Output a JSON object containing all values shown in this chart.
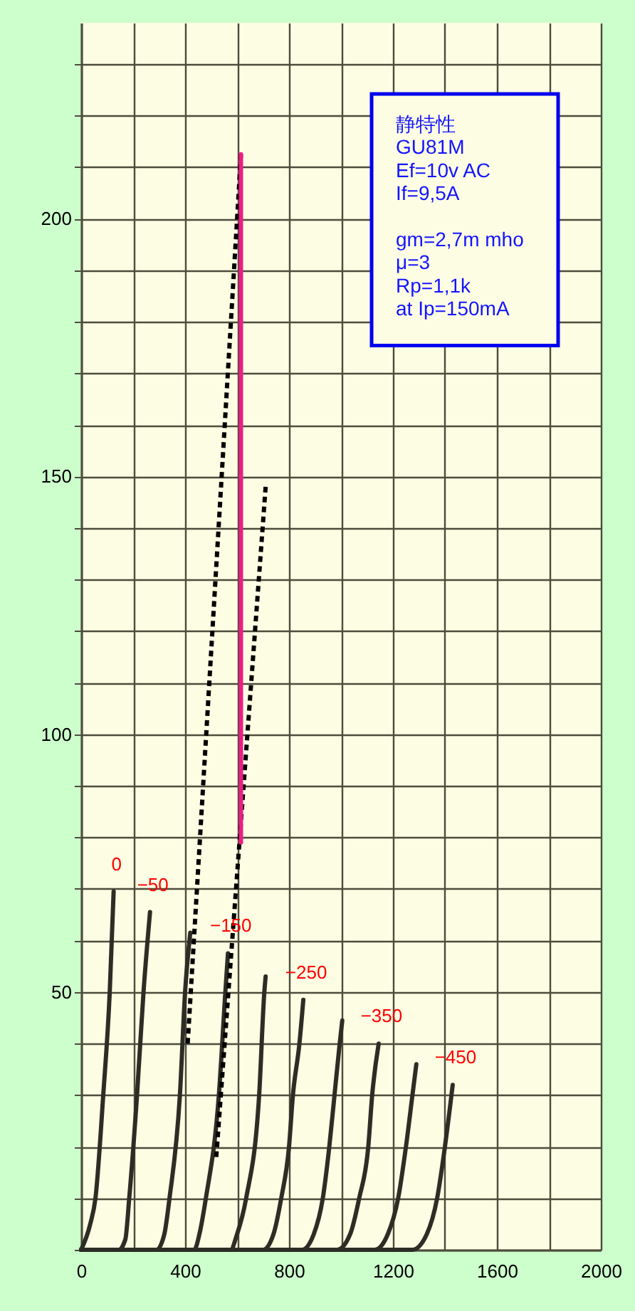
{
  "chart_data": {
    "type": "line",
    "annotations": [
      "静特性\nGU81M\nEf=10v AC\nIf=9,5A",
      "gm=2,7m mho\nμ=3\nRp=1,1k\nat Ip=150mA"
    ],
    "xlim": [
      0,
      2000
    ],
    "ylim": [
      0,
      238
    ],
    "xticks": [
      0,
      {
        "value": 200,
        "label": null
      },
      400,
      {
        "value": 600,
        "label": null
      },
      800,
      {
        "value": 1000,
        "label": null
      },
      1200,
      {
        "value": 1400,
        "label": null
      },
      1600,
      {
        "value": 1800,
        "label": null
      },
      2000
    ],
    "yticks": [
      {
        "value": 0,
        "label": null
      },
      {
        "value": 10,
        "label": null
      },
      {
        "value": 20,
        "label": null
      },
      {
        "value": 30,
        "label": null
      },
      {
        "value": 40,
        "label": null
      },
      50,
      {
        "value": 60,
        "label": null
      },
      {
        "value": 70,
        "label": null
      },
      {
        "value": 80,
        "label": null
      },
      {
        "value": 90,
        "label": null
      },
      100,
      {
        "value": 110,
        "label": null
      },
      {
        "value": 120,
        "label": null
      },
      {
        "value": 130,
        "label": null
      },
      {
        "value": 140,
        "label": null
      },
      150,
      {
        "value": 160,
        "label": null
      },
      {
        "value": 170,
        "label": null
      },
      {
        "value": 180,
        "label": null
      },
      {
        "value": 190,
        "label": null
      },
      200,
      {
        "value": 210,
        "label": null
      },
      {
        "value": 220,
        "label": null
      },
      {
        "value": 230,
        "label": null
      }
    ],
    "grid": true,
    "line_style": "solid",
    "series": [
      {
        "name": "0",
        "color": "#2d2d25",
        "x": [
          0,
          35,
          55,
          85,
          110,
          125
        ],
        "values": [
          0,
          5,
          10,
          30,
          50,
          69.5
        ]
      },
      {
        "name": "−50",
        "color": "#2d2d25",
        "x": [
          0,
          145,
          170,
          185,
          215,
          240,
          265
        ],
        "values": [
          0,
          0,
          2,
          10,
          30,
          50,
          65.5
        ]
      },
      {
        "color": "#2d2d25",
        "x": [
          0,
          290,
          320,
          340,
          380,
          400,
          420
        ],
        "values": [
          0,
          0,
          3,
          10,
          30,
          50,
          61.5
        ]
      },
      {
        "name": "−150",
        "color": "#2d2d25",
        "x": [
          0,
          435,
          455,
          480,
          530,
          555,
          565
        ],
        "values": [
          0,
          0,
          3,
          10,
          30,
          50,
          57.5
        ]
      },
      {
        "color": "#2d2d25",
        "x": [
          0,
          575,
          600,
          635,
          685,
          705,
          710
        ],
        "values": [
          0,
          0,
          3,
          10,
          30,
          50,
          53
        ]
      },
      {
        "name": "−250",
        "color": "#2d2d25",
        "x": [
          0,
          700,
          740,
          770,
          800,
          815,
          840,
          855
        ],
        "values": [
          0,
          0,
          3,
          10,
          20,
          30,
          40,
          48.5
        ]
      },
      {
        "color": "#2d2d25",
        "x": [
          0,
          850,
          895,
          930,
          955,
          975,
          995,
          1005
        ],
        "values": [
          0,
          0,
          3,
          10,
          20,
          30,
          40,
          44.5
        ]
      },
      {
        "name": "−350",
        "color": "#2d2d25",
        "x": [
          0,
          985,
          1035,
          1070,
          1105,
          1120,
          1145
        ],
        "values": [
          0,
          0,
          3,
          10,
          20,
          30,
          40
        ]
      },
      {
        "color": "#2d2d25",
        "x": [
          0,
          1130,
          1180,
          1220,
          1250,
          1275,
          1290
        ],
        "values": [
          0,
          0,
          3,
          10,
          20,
          30,
          36
        ]
      },
      {
        "name": "−450",
        "color": "#2d2d25",
        "x": [
          0,
          1275,
          1330,
          1370,
          1400,
          1430
        ],
        "values": [
          0,
          0,
          3,
          10,
          20,
          32
        ]
      },
      {
        "color": "#000000",
        "line_style": "dotted",
        "x": [
          410,
          615
        ],
        "values": [
          40,
          212.5
        ]
      },
      {
        "color": "#000000",
        "line_style": "dotted",
        "x": [
          520,
          710
        ],
        "values": [
          18,
          148
        ]
      },
      {
        "color": "#ee1c84",
        "x": [
          615,
          615
        ],
        "values": [
          79,
          212.5
        ]
      }
    ]
  }
}
